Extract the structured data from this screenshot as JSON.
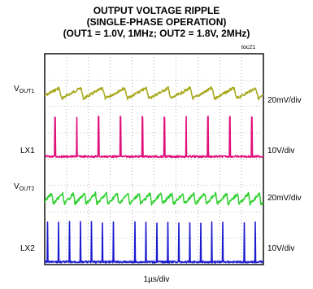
{
  "chart_data": {
    "type": "line",
    "title": "OUTPUT VOLTAGE RIPPLE",
    "subtitle_lines": [
      "(SINGLE-PHASE OPERATION)",
      "(OUT1 = 1.0V, 1MHz; OUT2 = 1.8V, 2MHz)"
    ],
    "tag": "toc21",
    "xlabel": "1µs/div",
    "grid": {
      "x_divisions": 10,
      "y_divisions": 8,
      "style": "dotted"
    },
    "series": [
      {
        "name": "VOUT1",
        "label_main": "V",
        "label_sub": "OUT1",
        "scale": "20mV/div",
        "color": "#a8a81c",
        "kind": "ripple",
        "period_us": 1.0,
        "peak_to_peak_div": 0.4,
        "center_div": 6.5
      },
      {
        "name": "LX1",
        "scale": "10V/div",
        "color": "#e0107a",
        "kind": "pulse",
        "period_us": 1.0,
        "low_div": 4.1,
        "high_div": 5.6
      },
      {
        "name": "VOUT2",
        "label_main": "V",
        "label_sub": "OUT2",
        "scale": "20mV/div",
        "color": "#2fd02f",
        "kind": "ripple",
        "period_us": 0.5,
        "peak_to_peak_div": 0.4,
        "center_div": 2.5
      },
      {
        "name": "LX2",
        "scale": "10V/div",
        "color": "#1a1ad0",
        "kind": "pulse",
        "period_us": 0.5,
        "low_div": 0.1,
        "high_div": 1.6
      }
    ]
  }
}
